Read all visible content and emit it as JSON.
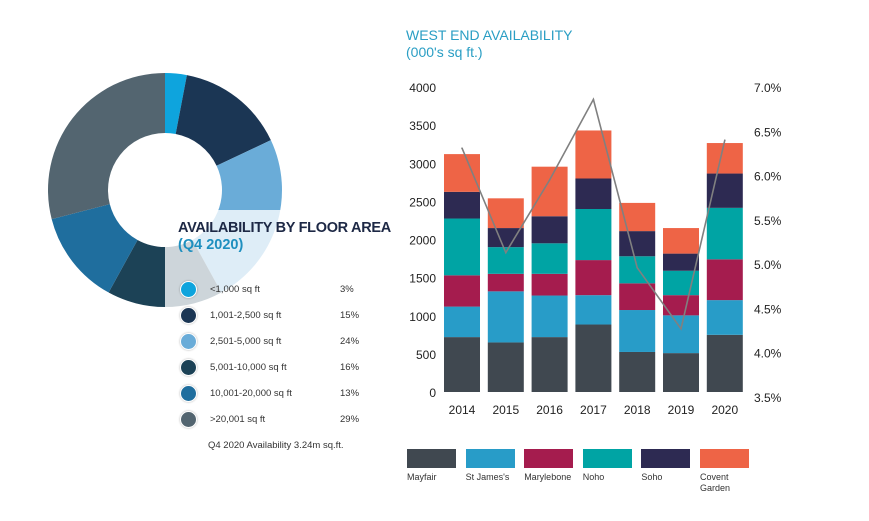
{
  "chart_data": [
    {
      "type": "pie",
      "variant": "donut",
      "title": "AVAILABILITY BY FLOOR AREA",
      "subtitle": "(Q4 2020)",
      "note": "Q4 2020 Availability 3.24m sq.ft.",
      "slices": [
        {
          "label": "<1,000 sq ft",
          "pct_label": "3%",
          "value": 3,
          "color": "#0ea4dd"
        },
        {
          "label": "1,001-2,500 sq ft",
          "pct_label": "15%",
          "value": 15,
          "color": "#1b3654"
        },
        {
          "label": "2,501-5,000 sq ft",
          "pct_label": "24%",
          "value": 24,
          "color": "#6aacd8"
        },
        {
          "label": "5,001-10,000 sq ft",
          "pct_label": "16%",
          "value": 16,
          "color": "#1c4256"
        },
        {
          "label": "10,001-20,000 sq ft",
          "pct_label": "13%",
          "value": 13,
          "color": "#1f6e9e"
        },
        {
          "label": ">20,001 sq ft",
          "pct_label": "29%",
          "value": 29,
          "color": "#536570"
        }
      ],
      "legend": "right"
    },
    {
      "type": "bar",
      "stacked": true,
      "title": "WEST END AVAILABILITY",
      "subtitle": "(000's sq ft.)",
      "categories": [
        "2014",
        "2015",
        "2016",
        "2017",
        "2018",
        "2019",
        "2020"
      ],
      "ylim": [
        0,
        4000
      ],
      "yticks": [
        "0",
        "500",
        "1000",
        "1500",
        "2000",
        "2500",
        "3000",
        "3500",
        "4000"
      ],
      "y2lim": [
        3.5,
        7.0
      ],
      "y2ticks": [
        "3.5%",
        "4.0%",
        "4.5%",
        "5.0%",
        "5.5%",
        "6.0%",
        "6.5%",
        "7.0%"
      ],
      "grid": false,
      "legend": "bottom",
      "series": [
        {
          "name": "Mayfair",
          "color": "#404850",
          "values": [
            720,
            650,
            720,
            885,
            525,
            510,
            750
          ]
        },
        {
          "name": "St James's",
          "color": "#289cc8",
          "values": [
            400,
            670,
            545,
            385,
            550,
            495,
            455
          ]
        },
        {
          "name": "Marylebone",
          "color": "#a51c4e",
          "values": [
            410,
            230,
            285,
            460,
            350,
            265,
            535
          ]
        },
        {
          "name": "Noho",
          "color": "#00a4a4",
          "values": [
            745,
            350,
            400,
            670,
            355,
            320,
            675
          ]
        },
        {
          "name": "Soho",
          "color": "#2d2a52",
          "values": [
            350,
            250,
            355,
            400,
            330,
            225,
            450
          ]
        },
        {
          "name": "Covent Garden",
          "color": "#ee6446",
          "values": [
            495,
            390,
            650,
            630,
            370,
            335,
            400
          ]
        }
      ],
      "line": {
        "axis": "right",
        "color": "#808080",
        "values": [
          6.31,
          5.13,
          5.95,
          6.86,
          4.96,
          4.27,
          6.4
        ]
      }
    }
  ]
}
